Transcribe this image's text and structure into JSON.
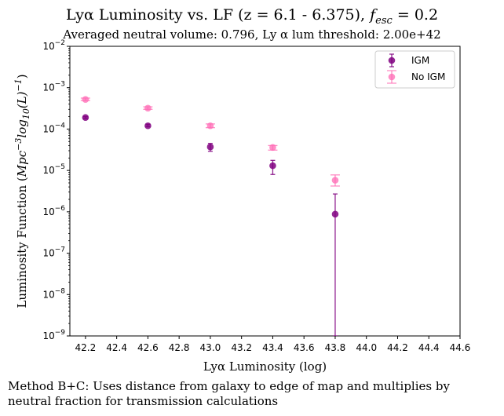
{
  "title": "Lyα Luminosity vs. LF (z = 6.1 - 6.375), f_esc = 0.2",
  "title_parts": {
    "prefix": "Lyα Luminosity vs. LF (z = 6.1 - 6.375), ",
    "f": "f",
    "sub": "esc",
    "suffix": " = 0.2"
  },
  "subtitle": "Averaged neutral volume: 0.796, Ly α lum threshold: 2.00e+42",
  "caption_lines": [
    "Method B+C: Uses distance from galaxy to edge of map and multiplies by",
    "neutral fraction for transmission calculations"
  ],
  "chart_data": {
    "type": "scatter",
    "title": "Lyα Luminosity vs. LF (z = 6.1 - 6.375), f_esc = 0.2",
    "subtitle": "Averaged neutral volume: 0.796, Ly α lum threshold: 2.00e+42",
    "xlabel": "Lyα Luminosity (log)",
    "ylabel": "Luminosity Function (Mpc^-3 log10(L)^-1)",
    "xlim": [
      42.1,
      44.6
    ],
    "ylim": [
      1e-09,
      0.01
    ],
    "yscale": "log",
    "x_ticks": [
      "42.2",
      "42.4",
      "42.6",
      "42.8",
      "43.0",
      "43.2",
      "43.4",
      "43.6",
      "43.8",
      "44.0",
      "44.2",
      "44.4",
      "44.6"
    ],
    "y_ticks": [
      {
        "exp": -9,
        "label": "10^-9"
      },
      {
        "exp": -8,
        "label": "10^-8"
      },
      {
        "exp": -7,
        "label": "10^-7"
      },
      {
        "exp": -6,
        "label": "10^-6"
      },
      {
        "exp": -5,
        "label": "10^-5"
      },
      {
        "exp": -4,
        "label": "10^-4"
      },
      {
        "exp": -3,
        "label": "10^-3"
      },
      {
        "exp": -2,
        "label": "10^-2"
      }
    ],
    "grid": false,
    "legend_position": "top-right",
    "series": [
      {
        "name": "IGM",
        "color": "#800080",
        "x": [
          42.2,
          42.6,
          43.0,
          43.4,
          43.8
        ],
        "y": [
          0.00019,
          0.00012,
          3.7e-05,
          1.3e-05,
          8.8e-07
        ],
        "y_err_low": [
          0.00018,
          0.000115,
          2.9e-05,
          8e-06,
          1e-09
        ],
        "y_err_high": [
          0.0002,
          0.00013,
          4.5e-05,
          1.75e-05,
          2.7e-06
        ]
      },
      {
        "name": "No IGM",
        "color": "#ff69b4",
        "x": [
          42.2,
          42.6,
          43.0,
          43.4,
          43.8
        ],
        "y": [
          0.00052,
          0.00032,
          0.00012,
          3.6e-05,
          5.8e-06
        ],
        "y_err_low": [
          0.00049,
          0.0003,
          0.000108,
          3.1e-05,
          4.2e-06
        ],
        "y_err_high": [
          0.00056,
          0.000345,
          0.000133,
          4e-05,
          7.8e-06
        ]
      }
    ]
  }
}
